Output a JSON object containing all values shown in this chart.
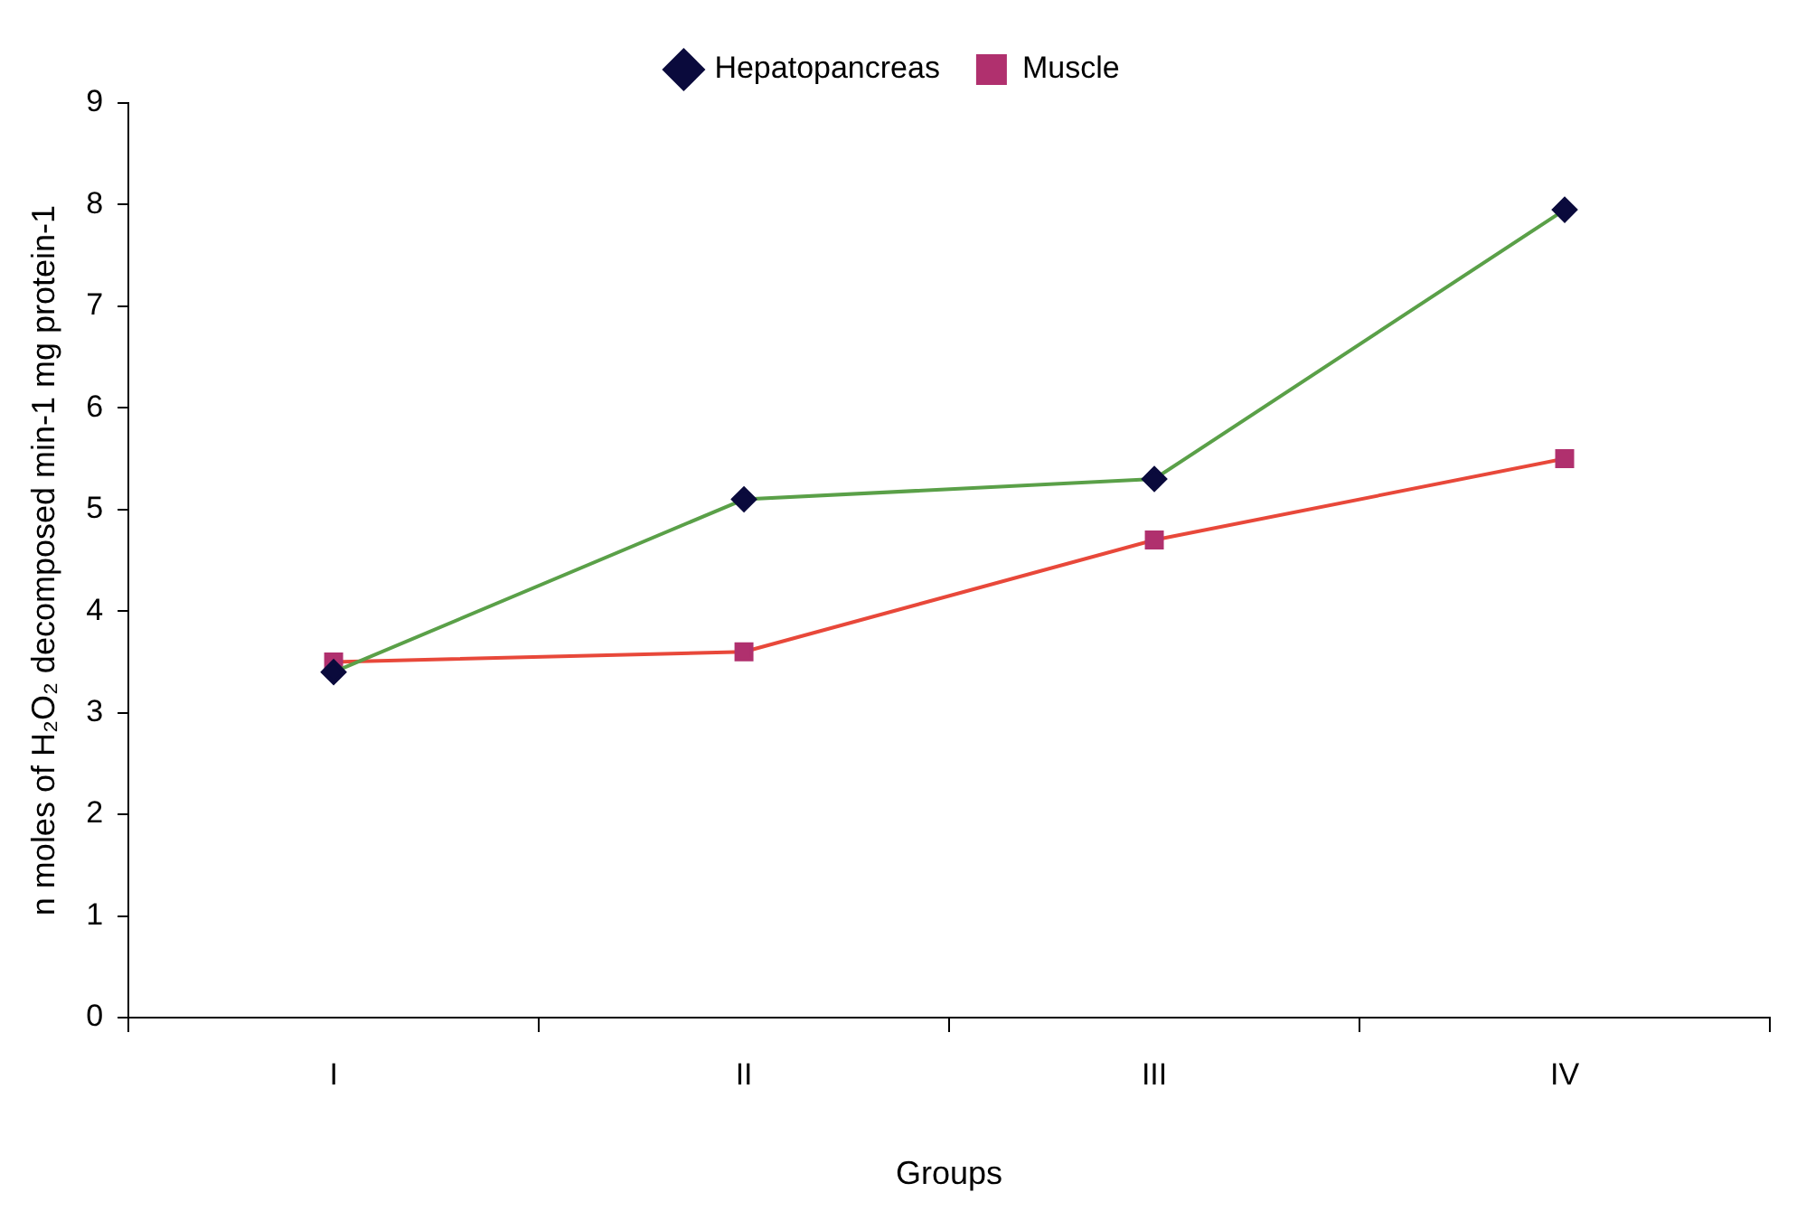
{
  "chart_data": {
    "type": "line",
    "categories": [
      "I",
      "II",
      "III",
      "IV"
    ],
    "series": [
      {
        "name": "Hepatopancreas",
        "color": "#5aa048",
        "colors": [
          "#0a0a3c",
          "#0a0a3c",
          "#0a0a3c",
          "#0a0a3c"
        ],
        "marker": "diamond",
        "values": [
          3.4,
          5.1,
          5.3,
          7.95
        ]
      },
      {
        "name": "Muscle",
        "color": "#e8483a",
        "colors": [
          "#b0306e",
          "#b0306e",
          "#b0306e",
          "#b0306e"
        ],
        "marker": "square",
        "values": [
          3.5,
          3.6,
          4.7,
          5.5
        ]
      }
    ],
    "xlabel": "Groups",
    "ylabel": "n moles of H₂O₂ decomposed min-1 mg protein-1",
    "ylim": [
      0,
      9
    ],
    "yticks": [
      0,
      1,
      2,
      3,
      4,
      5,
      6,
      7,
      8,
      9
    ],
    "grid": false,
    "legend": "top",
    "line_style": "solid"
  }
}
